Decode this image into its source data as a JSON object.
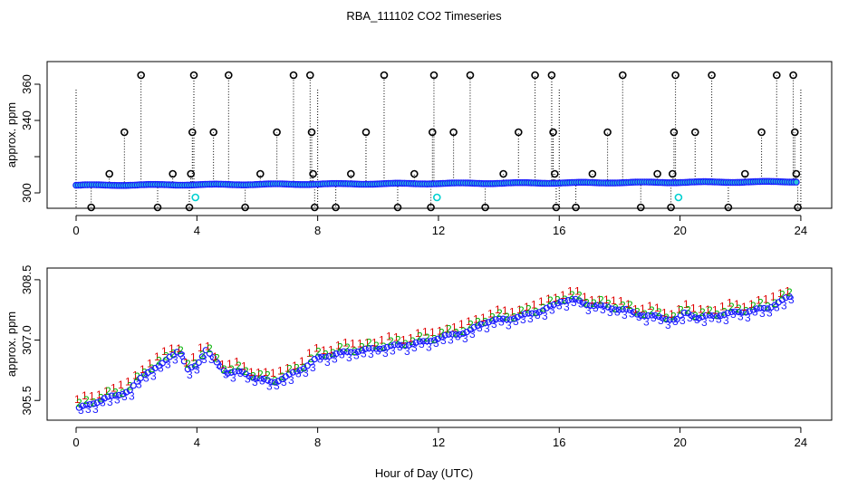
{
  "title": "RBA_111102  CO2 Timeseries",
  "xlabel": "Hour of Day (UTC)",
  "chart_data": [
    {
      "type": "scatter",
      "panel": "top",
      "ylabel": "approx. ppm",
      "xlim": [
        0,
        24
      ],
      "ylim": [
        292,
        367
      ],
      "xticks": [
        0,
        4,
        8,
        12,
        16,
        20,
        24
      ],
      "yticks": [
        300,
        320,
        340,
        360
      ],
      "ytick_labels": [
        "300",
        "",
        "340",
        "360"
      ],
      "baseline": {
        "start": 304.2,
        "end": 306.2
      },
      "spikes": [
        {
          "x": 0.5,
          "y": 292.0
        },
        {
          "x": 1.1,
          "y": 310.5
        },
        {
          "x": 1.6,
          "y": 333.5
        },
        {
          "x": 2.15,
          "y": 365.0
        },
        {
          "x": 2.7,
          "y": 292.0
        },
        {
          "x": 3.2,
          "y": 310.5
        },
        {
          "x": 3.75,
          "y": 292.0
        },
        {
          "x": 3.8,
          "y": 310.5
        },
        {
          "x": 3.85,
          "y": 333.5
        },
        {
          "x": 3.9,
          "y": 365.0
        },
        {
          "x": 4.55,
          "y": 333.5
        },
        {
          "x": 5.05,
          "y": 365.0
        },
        {
          "x": 5.6,
          "y": 292.0
        },
        {
          "x": 6.1,
          "y": 310.5
        },
        {
          "x": 6.65,
          "y": 333.5
        },
        {
          "x": 7.2,
          "y": 365.0
        },
        {
          "x": 7.75,
          "y": 365.0
        },
        {
          "x": 7.8,
          "y": 333.5
        },
        {
          "x": 7.85,
          "y": 310.5
        },
        {
          "x": 7.9,
          "y": 292.0
        },
        {
          "x": 8.6,
          "y": 292.0
        },
        {
          "x": 9.1,
          "y": 310.5
        },
        {
          "x": 9.6,
          "y": 333.5
        },
        {
          "x": 10.2,
          "y": 365.0
        },
        {
          "x": 10.65,
          "y": 292.0
        },
        {
          "x": 11.2,
          "y": 310.5
        },
        {
          "x": 11.75,
          "y": 292.0
        },
        {
          "x": 11.8,
          "y": 333.5
        },
        {
          "x": 11.85,
          "y": 365.0
        },
        {
          "x": 12.5,
          "y": 333.5
        },
        {
          "x": 13.05,
          "y": 365.0
        },
        {
          "x": 13.55,
          "y": 292.0
        },
        {
          "x": 14.15,
          "y": 310.5
        },
        {
          "x": 14.65,
          "y": 333.5
        },
        {
          "x": 15.2,
          "y": 365.0
        },
        {
          "x": 15.75,
          "y": 365.0
        },
        {
          "x": 15.8,
          "y": 333.5
        },
        {
          "x": 15.85,
          "y": 310.5
        },
        {
          "x": 15.9,
          "y": 292.0
        },
        {
          "x": 16.55,
          "y": 292.0
        },
        {
          "x": 17.1,
          "y": 310.5
        },
        {
          "x": 17.6,
          "y": 333.5
        },
        {
          "x": 18.1,
          "y": 365.0
        },
        {
          "x": 18.7,
          "y": 292.0
        },
        {
          "x": 19.25,
          "y": 310.5
        },
        {
          "x": 19.7,
          "y": 292.0
        },
        {
          "x": 19.75,
          "y": 310.5
        },
        {
          "x": 19.8,
          "y": 333.5
        },
        {
          "x": 19.85,
          "y": 365.0
        },
        {
          "x": 20.5,
          "y": 333.5
        },
        {
          "x": 21.05,
          "y": 365.0
        },
        {
          "x": 21.6,
          "y": 292.0
        },
        {
          "x": 22.15,
          "y": 310.5
        },
        {
          "x": 22.7,
          "y": 333.5
        },
        {
          "x": 23.2,
          "y": 365.0
        },
        {
          "x": 23.75,
          "y": 365.0
        },
        {
          "x": 23.8,
          "y": 333.5
        },
        {
          "x": 23.85,
          "y": 310.5
        },
        {
          "x": 23.9,
          "y": 292.0
        }
      ],
      "cyan_points": [
        {
          "x": 3.95,
          "y": 297.5
        },
        {
          "x": 11.95,
          "y": 297.5
        },
        {
          "x": 19.95,
          "y": 297.5
        }
      ],
      "colors": {
        "baseline": "#1a1aff",
        "baseline_fill": "#29c6d8",
        "spike": "#000000",
        "cyan": "#00d0d0"
      }
    },
    {
      "type": "scatter",
      "panel": "bottom",
      "ylabel": "approx. ppm",
      "xlim": [
        0,
        24
      ],
      "ylim": [
        305.1,
        308.7
      ],
      "xticks": [
        0,
        4,
        8,
        12,
        16,
        20,
        24
      ],
      "yticks": [
        305.5,
        307.0,
        308.5
      ],
      "series": [
        {
          "name": "1",
          "marker": "1",
          "color": "#e00000",
          "offset": 0.18
        },
        {
          "name": "2",
          "marker": "2",
          "color": "#00b000",
          "offset": 0.08
        },
        {
          "name": "3",
          "marker": "3",
          "color": "#1a1aff",
          "offset": -0.1
        },
        {
          "name": "mean",
          "marker": "o",
          "color": "#1a1aff",
          "offset": 0
        }
      ],
      "trend": [
        [
          0.1,
          305.3
        ],
        [
          0.6,
          305.45
        ],
        [
          1.2,
          305.6
        ],
        [
          1.8,
          305.75
        ],
        [
          2.3,
          306.2
        ],
        [
          2.8,
          306.35
        ],
        [
          3.1,
          306.6
        ],
        [
          3.4,
          306.75
        ],
        [
          3.7,
          306.25
        ],
        [
          4.0,
          306.4
        ],
        [
          4.3,
          306.75
        ],
        [
          4.7,
          306.4
        ],
        [
          5.0,
          306.2
        ],
        [
          5.5,
          306.2
        ],
        [
          6.0,
          306.05
        ],
        [
          6.5,
          305.95
        ],
        [
          7.0,
          306.1
        ],
        [
          7.5,
          306.3
        ],
        [
          8.0,
          306.55
        ],
        [
          8.5,
          306.65
        ],
        [
          9.0,
          306.7
        ],
        [
          9.5,
          306.75
        ],
        [
          10.0,
          306.8
        ],
        [
          10.5,
          306.85
        ],
        [
          11.0,
          306.9
        ],
        [
          11.5,
          306.95
        ],
        [
          12.0,
          307.05
        ],
        [
          12.5,
          307.15
        ],
        [
          13.0,
          307.2
        ],
        [
          13.5,
          307.45
        ],
        [
          14.0,
          307.5
        ],
        [
          14.5,
          307.55
        ],
        [
          15.0,
          307.65
        ],
        [
          15.5,
          307.75
        ],
        [
          15.8,
          307.85
        ],
        [
          16.1,
          308.0
        ],
        [
          16.5,
          308.0
        ],
        [
          16.9,
          307.9
        ],
        [
          17.3,
          307.85
        ],
        [
          17.7,
          307.8
        ],
        [
          18.2,
          307.75
        ],
        [
          18.6,
          307.65
        ],
        [
          19.0,
          307.6
        ],
        [
          19.5,
          307.55
        ],
        [
          19.9,
          307.5
        ],
        [
          20.2,
          307.7
        ],
        [
          20.6,
          307.55
        ],
        [
          21.0,
          307.6
        ],
        [
          21.5,
          307.65
        ],
        [
          22.0,
          307.7
        ],
        [
          22.5,
          307.75
        ],
        [
          22.9,
          307.8
        ],
        [
          23.3,
          307.95
        ],
        [
          23.7,
          308.1
        ]
      ]
    }
  ]
}
